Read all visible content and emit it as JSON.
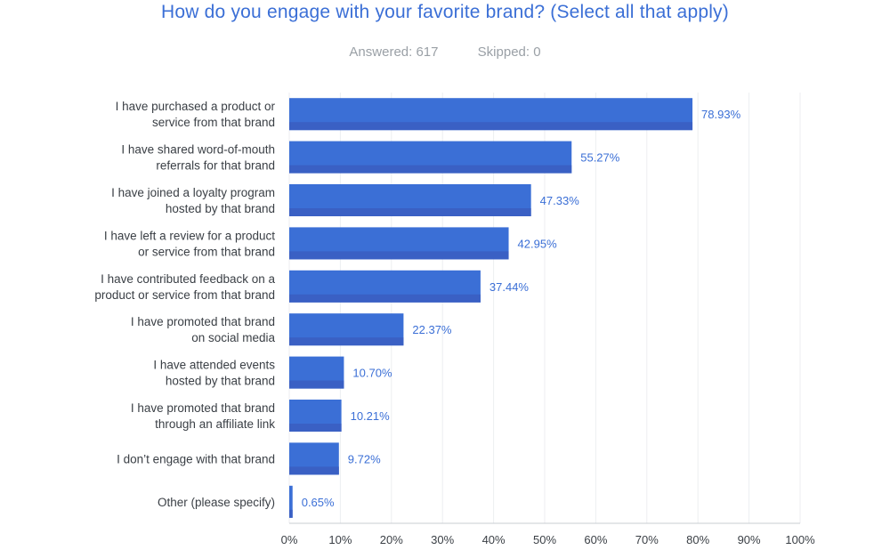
{
  "stats": {
    "answered": "Answered: 617",
    "skipped": "Skipped: 0"
  },
  "colors": {
    "bar": "#3b6fd6",
    "bar_shadow": "#3a60c4",
    "grid": "#eceef1",
    "axis": "#c8ccd2",
    "title": "#3b6fd6",
    "value_text": "#3b6fd6"
  },
  "chart_data": {
    "type": "bar",
    "orientation": "horizontal",
    "title": "How do you engage with your favorite brand? (Select all that apply)",
    "xlabel": "",
    "ylabel": "",
    "xlim": [
      0,
      100
    ],
    "grid": true,
    "categories": [
      [
        "I have purchased a product or",
        "service from that brand"
      ],
      [
        "I have shared word-of-mouth",
        "referrals for that brand"
      ],
      [
        "I have joined a loyalty program",
        "hosted by that brand"
      ],
      [
        "I have left a review for a product",
        "or service from that brand"
      ],
      [
        "I have contributed feedback on a",
        "product or service from that brand"
      ],
      [
        "I have promoted that brand",
        "on social media"
      ],
      [
        "I have attended events",
        "hosted by that brand"
      ],
      [
        "I have promoted that brand",
        "through an affiliate link"
      ],
      [
        "I don’t engage with that brand"
      ],
      [
        "Other (please specify)"
      ]
    ],
    "values": [
      78.93,
      55.27,
      47.33,
      42.95,
      37.44,
      22.37,
      10.7,
      10.21,
      9.72,
      0.65
    ],
    "value_labels": [
      "78.93%",
      "55.27%",
      "47.33%",
      "42.95%",
      "37.44%",
      "22.37%",
      "10.70%",
      "10.21%",
      "9.72%",
      "0.65%"
    ],
    "tick_labels": [
      "0%",
      "10%",
      "20%",
      "30%",
      "40%",
      "50%",
      "60%",
      "70%",
      "80%",
      "90%",
      "100%"
    ]
  }
}
